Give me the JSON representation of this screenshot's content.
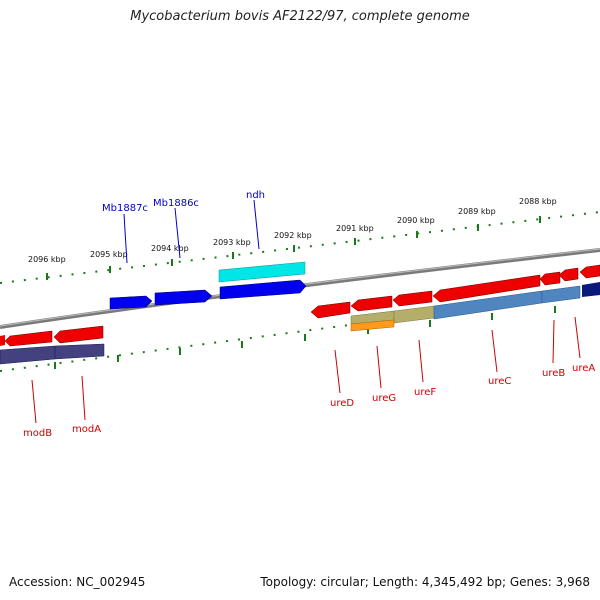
{
  "header": {
    "title": "Mycobacterium bovis AF2122/97, complete genome"
  },
  "footer": {
    "accession": "Accession: NC_002945",
    "stats": "Topology: circular; Length: 4,345,492 bp; Genes: 3,968"
  },
  "ruler": {
    "labels": [
      "2096 kbp",
      "2095 kbp",
      "2094 kbp",
      "2093 kbp",
      "2092 kbp",
      "2091 kbp",
      "2090 kbp",
      "2089 kbp",
      "2088 kbp"
    ]
  },
  "genes": {
    "top": [
      "Mb1887c",
      "Mb1886c",
      "ndh"
    ],
    "bottom": [
      "modB",
      "modA",
      "ureD",
      "ureG",
      "ureF",
      "ureC",
      "ureB",
      "ureA"
    ]
  },
  "colors": {
    "forward_cds": "#0000ee",
    "reverse_cds": "#ee0000",
    "rna": "#00e5e5",
    "top_label": "#0000cc",
    "bottom_label": "#cc0000",
    "tick": "#1a7a1a",
    "backbone": "#808080"
  }
}
